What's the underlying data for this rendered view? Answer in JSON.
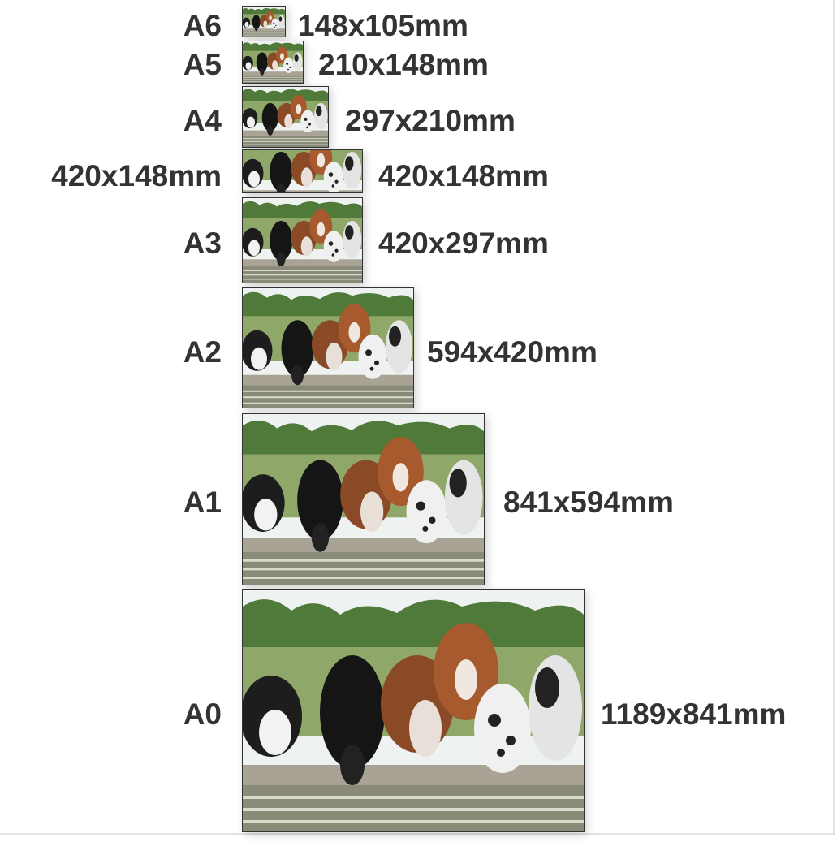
{
  "rows": [
    {
      "name": "A6",
      "size": "148x105mm"
    },
    {
      "name": "A5",
      "size": "210x148mm"
    },
    {
      "name": "A4",
      "size": "297x210mm"
    },
    {
      "name": "420x148mm",
      "size": "420x148mm"
    },
    {
      "name": "A3",
      "size": "420x297mm"
    },
    {
      "name": "A2",
      "size": "594x420mm"
    },
    {
      "name": "A1",
      "size": "841x594mm"
    },
    {
      "name": "A0",
      "size": "1189x841mm"
    }
  ],
  "photo_subject": "cattle drinking at water trough"
}
